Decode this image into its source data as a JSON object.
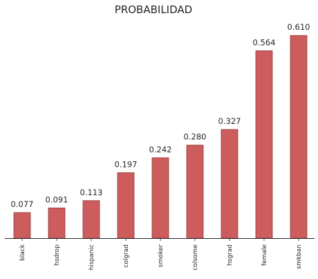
{
  "chart_data": {
    "type": "bar",
    "title": "PROBABILIDAD",
    "xlabel": "",
    "ylabel": "",
    "categories": [
      "black",
      "hsdrop",
      "hispanic",
      "colgrad",
      "smoker",
      "colsome",
      "hsgrad",
      "female",
      "smkban"
    ],
    "values": [
      0.077,
      0.091,
      0.113,
      0.197,
      0.242,
      0.28,
      0.327,
      0.564,
      0.61
    ],
    "value_labels": [
      "0.077",
      "0.091",
      "0.113",
      "0.197",
      "0.242",
      "0.280",
      "0.327",
      "0.564",
      "0.610"
    ],
    "ylim": [
      0,
      0.7
    ],
    "grid": false,
    "legend": "none",
    "bar_color": "#cd5c5c",
    "bar_edge_color": "#8b3a3a"
  }
}
